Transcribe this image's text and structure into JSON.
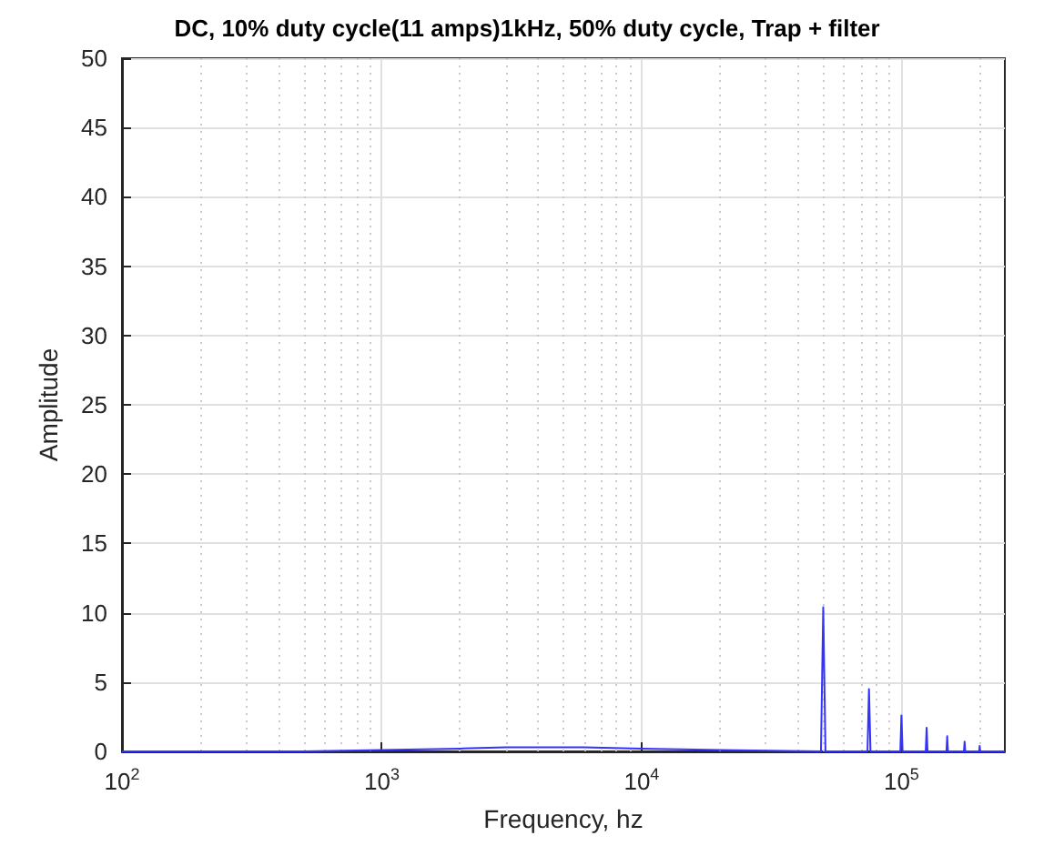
{
  "chart_data": {
    "type": "line",
    "title": "DC, 10% duty cycle(11 amps)1kHz, 50% duty cycle, Trap + filter",
    "xlabel": "Frequency, hz",
    "ylabel": "Amplitude",
    "log": "x",
    "x": [
      100,
      500,
      1000,
      2000,
      3000,
      4000,
      6000,
      10000,
      20000,
      49000,
      50000,
      51000,
      74000,
      75000,
      76000,
      99000,
      100000,
      101000,
      124000,
      125000,
      126000,
      149000,
      150000,
      151000,
      174000,
      175000,
      176000,
      199000,
      200000,
      201000,
      250000
    ],
    "series": [
      {
        "color": "#3333ff",
        "values": [
          0,
          0,
          0.1,
          0.2,
          0.3,
          0.3,
          0.3,
          0.2,
          0.1,
          0,
          10.4,
          0,
          0,
          4.5,
          0,
          0,
          2.6,
          0,
          0,
          1.7,
          0,
          0,
          1.1,
          0,
          0,
          0.7,
          0,
          0,
          0.4,
          0,
          0
        ]
      }
    ],
    "xlim": [
      100,
      250000
    ],
    "xticks": [
      {
        "value": 100,
        "label": "10$^{2}$"
      },
      {
        "value": 1000,
        "label": "10$^{3}$"
      },
      {
        "value": 10000,
        "label": "10$^{4}$"
      },
      {
        "value": 100000,
        "label": "10$^{5}$"
      }
    ],
    "ylim": [
      0,
      50
    ],
    "yticks": [
      0,
      5,
      10,
      15,
      20,
      25,
      30,
      35,
      40,
      45,
      50
    ],
    "grid": true,
    "line_style": "solid",
    "marker": "none"
  }
}
